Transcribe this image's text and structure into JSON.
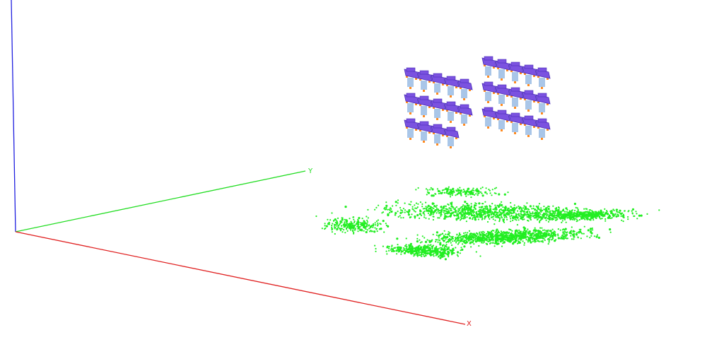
{
  "scene": {
    "background": "#ffffff",
    "axes": {
      "x": {
        "label": "X",
        "color": "#e02020"
      },
      "y": {
        "label": "Y",
        "color": "#22dd22"
      },
      "z": {
        "label": "",
        "color": "#2020e0"
      }
    },
    "point_cloud": {
      "color": "#22ee22",
      "description_icon": "point-cloud"
    },
    "components": {
      "body_color": "#7b52e0",
      "body_edge_color": "#4b2cb8",
      "pin_color": "#a9c6e8",
      "lead_color": "#ff8a1f",
      "groups": [
        {
          "rows": 3,
          "per_row": [
            5,
            5,
            4
          ]
        },
        {
          "rows": 3,
          "per_row": [
            5,
            5,
            5
          ]
        }
      ]
    }
  }
}
